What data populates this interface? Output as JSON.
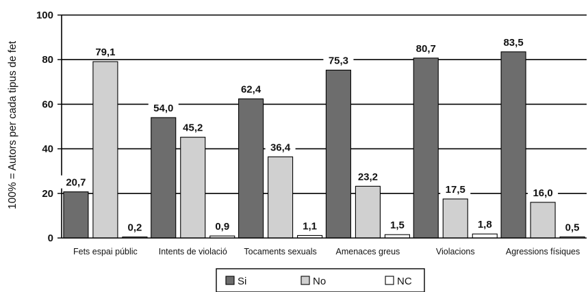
{
  "chart_data": {
    "type": "bar",
    "title": "",
    "xlabel": "",
    "ylabel": "100% = Autors per cada tipus de fet",
    "ylim": [
      0,
      100
    ],
    "yticks": [
      "0",
      "20",
      "40",
      "60",
      "80",
      "100"
    ],
    "grid": true,
    "legend_position": "bottom",
    "categories": [
      "Fets espai públic",
      "Intents de violació",
      "Tocaments sexuals",
      "Amenaces greus",
      "Violacions",
      "Agressions físiques"
    ],
    "series": [
      {
        "name": "Si",
        "color": "#6d6d6d",
        "values": [
          20.7,
          54.0,
          62.4,
          75.3,
          80.7,
          83.5
        ],
        "labels": [
          "20,7",
          "54,0",
          "62,4",
          "75,3",
          "80,7",
          "83,5"
        ]
      },
      {
        "name": "No",
        "color": "#d0d0d0",
        "values": [
          79.1,
          45.2,
          36.4,
          23.2,
          17.5,
          16.0
        ],
        "labels": [
          "79,1",
          "45,2",
          "36,4",
          "23,2",
          "17,5",
          "16,0"
        ]
      },
      {
        "name": "NC",
        "color": "#ffffff",
        "values": [
          0.2,
          0.9,
          1.1,
          1.5,
          1.8,
          0.5
        ],
        "labels": [
          "0,2",
          "0,9",
          "1,1",
          "1,5",
          "1,8",
          "0,5"
        ]
      }
    ]
  }
}
